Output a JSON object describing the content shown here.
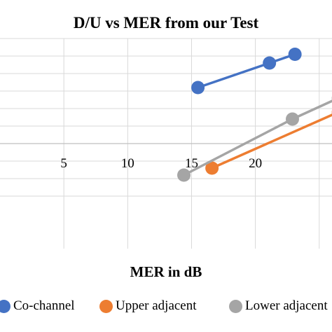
{
  "chart_data": {
    "type": "line",
    "title": "D/U vs MER from our Test",
    "xlabel": "MER in dB",
    "ylabel": "",
    "xlim": [
      0,
      26
    ],
    "ylim": [
      -30,
      30
    ],
    "x_ticks": [
      5,
      10,
      15,
      20
    ],
    "y_gridlines": [
      30,
      25,
      20,
      15,
      10,
      5,
      0,
      -5,
      -10,
      -15
    ],
    "grid": true,
    "legend_position": "bottom",
    "series": [
      {
        "name": "Co-channel",
        "color": "#4472C4",
        "points": [
          [
            15.5,
            16
          ],
          [
            21.1,
            23
          ],
          [
            23.1,
            25.5
          ]
        ]
      },
      {
        "name": "Upper adjacent",
        "color": "#ED7D31",
        "points": [
          [
            16.6,
            -7
          ],
          [
            26.5,
            9
          ]
        ]
      },
      {
        "name": "Lower adjacent",
        "color": "#A5A5A5",
        "points": [
          [
            14.4,
            -9
          ],
          [
            22.9,
            7
          ],
          [
            26.5,
            13
          ]
        ]
      }
    ]
  },
  "legend": {
    "items": [
      {
        "label": "Co-channel",
        "color": "#4472C4"
      },
      {
        "label": "Upper adjacent",
        "color": "#ED7D31"
      },
      {
        "label": "Lower adjacent",
        "color": "#A5A5A5"
      }
    ]
  }
}
